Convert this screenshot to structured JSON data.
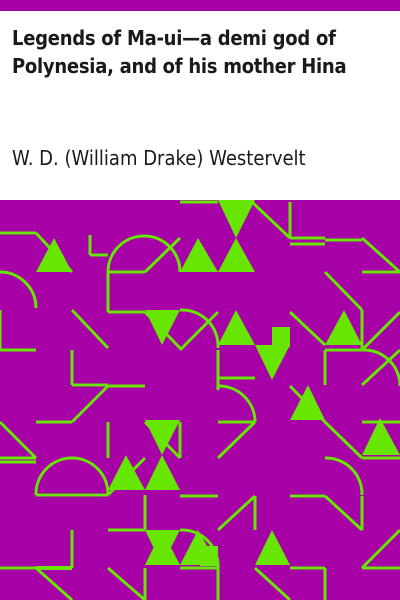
{
  "book": {
    "title": "Legends of Ma-ui—a demi god of Polynesia, and of his mother Hina",
    "author": "W. D. (William Drake) Westervelt"
  },
  "colors": {
    "accent": "#a600a6",
    "pattern_background": "#a600a6",
    "pattern_foreground": "#66e600",
    "text": "#1a1a1a",
    "background": "#ffffff"
  }
}
